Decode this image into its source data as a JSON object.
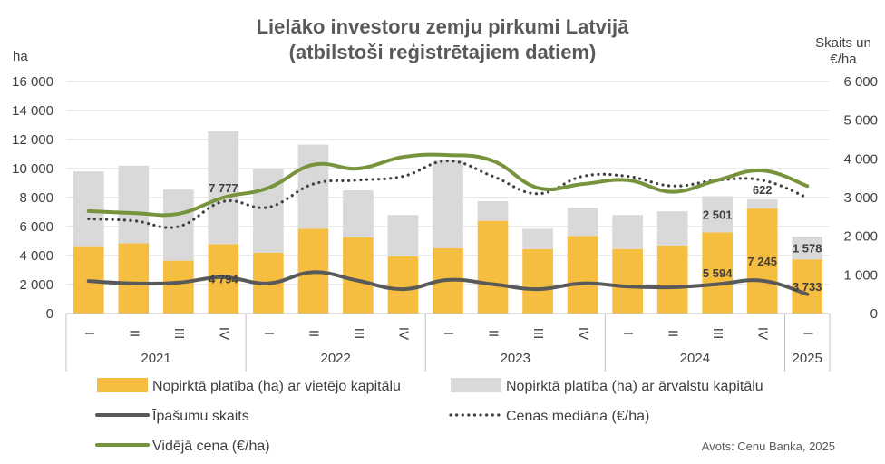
{
  "chart_data": {
    "type": "bar",
    "title_line1": "Lielāko investoru zemju pirkumi Latvijā",
    "title_line2": "(atbilstoši reģistrētajiem datiem)",
    "left_unit": "ha",
    "right_unit_line1": "Skaits un",
    "right_unit_line2": "€/ha",
    "left_ticks": [
      "0",
      "2 000",
      "4 000",
      "6 000",
      "8 000",
      "10 000",
      "12 000",
      "14 000",
      "16 000"
    ],
    "right_ticks": [
      "0",
      "1 000",
      "2 000",
      "3 000",
      "4 000",
      "5 000",
      "6 000"
    ],
    "ylim_left": [
      0,
      16000
    ],
    "ylim_right": [
      0,
      6000
    ],
    "categories": [
      "I",
      "II",
      "III",
      "IV",
      "I",
      "II",
      "III",
      "IV",
      "I",
      "II",
      "III",
      "IV",
      "I",
      "II",
      "III",
      "IV",
      "I"
    ],
    "years": [
      {
        "label": "2021",
        "count": 4
      },
      {
        "label": "2022",
        "count": 4
      },
      {
        "label": "2023",
        "count": 4
      },
      {
        "label": "2024",
        "count": 4
      },
      {
        "label": "2025",
        "count": 1
      }
    ],
    "stacked_series": [
      {
        "name": "Nopirktā platība (ha) ar vietējo kapitālu",
        "color": "#F5BE41",
        "values": [
          4650,
          4850,
          3650,
          4794,
          4200,
          5850,
          5250,
          3950,
          4500,
          6400,
          4450,
          5350,
          4450,
          4700,
          5594,
          7245,
          3733
        ]
      },
      {
        "name": "Nopirktā platība (ha) ar ārvalstu kapitālu",
        "color": "#D9D9D9",
        "values": [
          5150,
          5350,
          4900,
          7777,
          5800,
          5800,
          3250,
          2850,
          6100,
          1350,
          1400,
          1950,
          2350,
          2350,
          2501,
          622,
          1578
        ]
      }
    ],
    "line_series": [
      {
        "name": "Īpašumu skaits",
        "color": "#595959",
        "style": "solid",
        "values": [
          840,
          780,
          800,
          940,
          780,
          1070,
          850,
          630,
          870,
          760,
          630,
          780,
          700,
          680,
          760,
          850,
          500
        ]
      },
      {
        "name": "Cenas mediāna (€/ha)",
        "color": "#404040",
        "style": "dotted",
        "values": [
          2450,
          2400,
          2250,
          2900,
          2750,
          3350,
          3450,
          3550,
          3950,
          3550,
          3100,
          3550,
          3550,
          3300,
          3450,
          3450,
          3000
        ]
      },
      {
        "name": "Vidējā cena (€/ha)",
        "color": "#77933C",
        "style": "solid",
        "values": [
          2650,
          2600,
          2580,
          3000,
          3250,
          3850,
          3750,
          4050,
          4100,
          3950,
          3250,
          3350,
          3450,
          3150,
          3450,
          3700,
          3300
        ]
      }
    ],
    "data_labels": [
      {
        "index": 3,
        "text": "7 777",
        "series": 1
      },
      {
        "index": 3,
        "text": "4 794",
        "series": 0
      },
      {
        "index": 14,
        "text": "2 501",
        "series": 1
      },
      {
        "index": 14,
        "text": "5 594",
        "series": 0
      },
      {
        "index": 15,
        "text": "622",
        "series": 1
      },
      {
        "index": 15,
        "text": "7 245",
        "series": 0
      },
      {
        "index": 16,
        "text": "1 578",
        "series": 1
      },
      {
        "index": 16,
        "text": "3 733",
        "series": 0
      }
    ],
    "legend": [
      {
        "text": "Nopirktā platība (ha) ar vietējo kapitālu",
        "type": "bar",
        "color": "#F5BE41"
      },
      {
        "text": "Nopirktā platība (ha) ar ārvalstu kapitālu",
        "type": "bar",
        "color": "#D9D9D9"
      },
      {
        "text": "Īpašumu skaits",
        "type": "line",
        "color": "#595959",
        "style": "solid"
      },
      {
        "text": "Cenas mediāna (€/ha)",
        "type": "line",
        "color": "#404040",
        "style": "dotted"
      },
      {
        "text": "Vidējā cena (€/ha)",
        "type": "line",
        "color": "#77933C",
        "style": "solid"
      }
    ],
    "source": "Avots: Cenu Banka, 2025",
    "grid": true
  }
}
